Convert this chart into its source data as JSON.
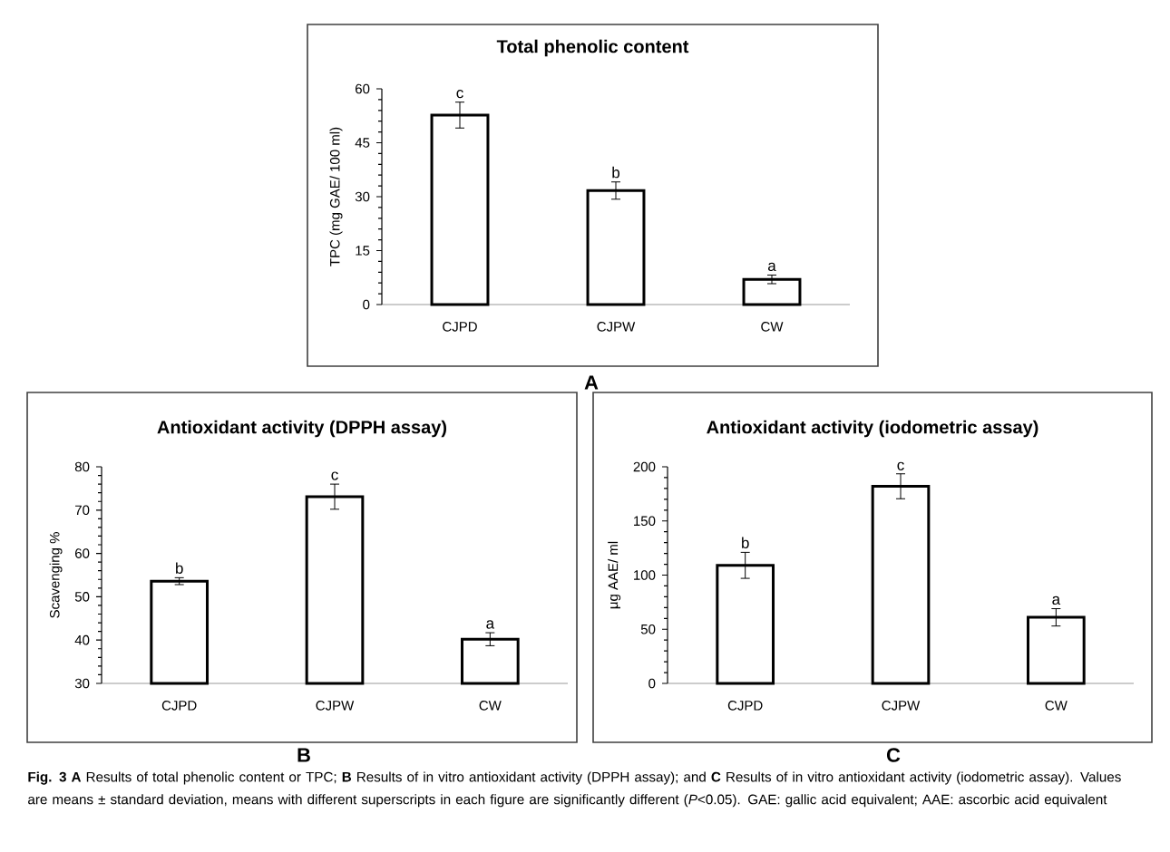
{
  "chart_data": [
    {
      "type": "bar",
      "title": "Total phenolic content",
      "ylabel": "TPC (mg GAE/ 100 ml)",
      "categories": [
        "CJPD",
        "CJPW",
        "CW"
      ],
      "values": [
        52.7,
        31.7,
        7.0
      ],
      "errors": [
        3.6,
        2.4,
        1.2
      ],
      "color": "#ffffff",
      "ylim": [
        0,
        60
      ],
      "yticks": [
        0,
        15,
        30,
        45,
        60
      ],
      "annotations": [
        {
          "text": "c",
          "x": "CJPD",
          "y": 56.3
        },
        {
          "text": "b",
          "x": "CJPW",
          "y": 34.1
        },
        {
          "text": "a",
          "x": "CW",
          "y": 8.2
        },
        "A"
      ]
    },
    {
      "type": "bar",
      "title": "Antioxidant activity (DPPH assay)",
      "ylabel": "Scavenging %",
      "categories": [
        "CJPD",
        "CJPW",
        "CW"
      ],
      "values": [
        53.6,
        73.1,
        40.2
      ],
      "errors": [
        0.8,
        2.9,
        1.5
      ],
      "color": "#ffffff",
      "ylim": [
        30,
        80
      ],
      "yticks": [
        30,
        40,
        50,
        60,
        70,
        80
      ],
      "annotations": [
        {
          "text": "b",
          "x": "CJPD",
          "y": 54.4
        },
        {
          "text": "c",
          "x": "CJPW",
          "y": 76.0
        },
        {
          "text": "a",
          "x": "CW",
          "y": 41.7
        },
        "B"
      ]
    },
    {
      "type": "bar",
      "title": "Antioxidant activity (iodometric assay)",
      "ylabel": "μg AAE/ ml",
      "categories": [
        "CJPD",
        "CJPW",
        "CW"
      ],
      "values": [
        109,
        182,
        61
      ],
      "errors": [
        12,
        11.5,
        8
      ],
      "color": "#ffffff",
      "ylim": [
        0,
        200
      ],
      "yticks": [
        0,
        50,
        100,
        150,
        200
      ],
      "annotations": [
        {
          "text": "b",
          "x": "CJPD",
          "y": 121
        },
        {
          "text": "c",
          "x": "CJPW",
          "y": 193
        },
        {
          "text": "a",
          "x": "CW",
          "y": 69
        },
        "C",
        "**Fig. 3** **A** Results of total phenolic content or TPC; **B** Results of in vitro antioxidant activity (DPPH assay); and **C** Results of in vitro antioxidant activity (iodometric assay). Values are means ± standard deviation, means with different superscripts in each figure are significantly different (*P*<0.05). GAE: gallic acid equivalent; AAE: ascorbic acid equivalent"
      ]
    }
  ]
}
